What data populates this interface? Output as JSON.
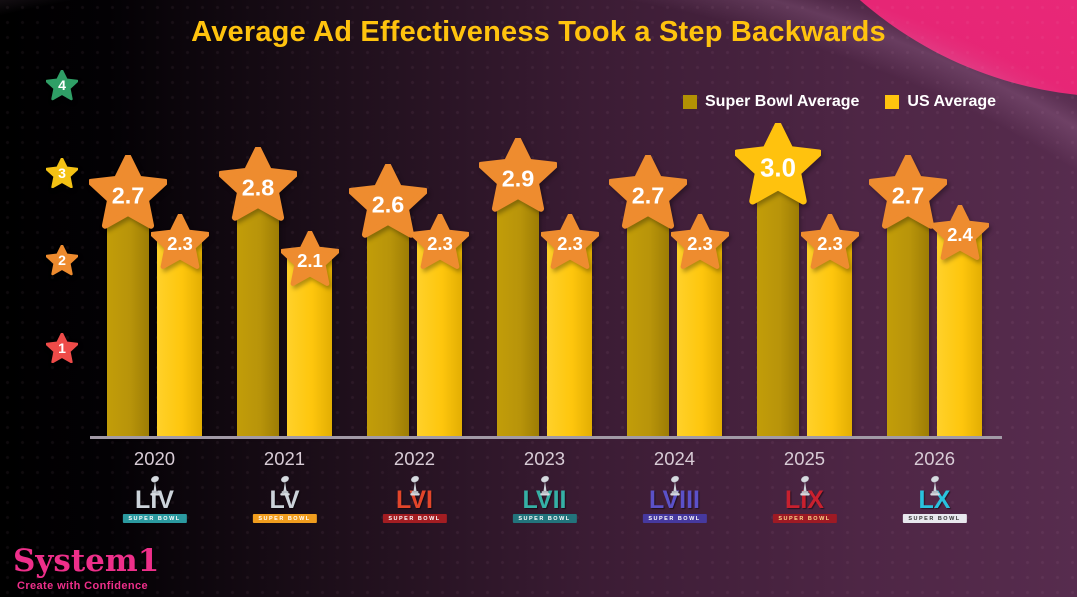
{
  "title": "Average Ad Effectiveness Took a Step Backwards",
  "legend": [
    {
      "label": "Super Bowl Average",
      "color": "#b29104"
    },
    {
      "label": "US Average",
      "color": "#ffc40e"
    }
  ],
  "y_axis": {
    "stars": [
      {
        "value": "4",
        "color": "#2f9f66"
      },
      {
        "value": "3",
        "color": "#f4c214"
      },
      {
        "value": "2",
        "color": "#ee8b2e"
      },
      {
        "value": "1",
        "color": "#ee4b49"
      }
    ]
  },
  "chart_data": {
    "type": "bar",
    "title": "Average Ad Effectiveness Took a Step Backwards",
    "categories": [
      "2020",
      "2021",
      "2022",
      "2023",
      "2024",
      "2025",
      "2026"
    ],
    "series": [
      {
        "name": "Super Bowl Average",
        "color": "#b8940a",
        "values": [
          2.7,
          2.8,
          2.6,
          2.9,
          2.7,
          3.0,
          2.7
        ]
      },
      {
        "name": "US Average",
        "color": "#fec60d",
        "values": [
          2.3,
          2.1,
          2.3,
          2.3,
          2.3,
          2.3,
          2.4
        ]
      }
    ],
    "ylim": [
      0,
      4
    ],
    "y_ticks": [
      1,
      2,
      3,
      4
    ],
    "value_star_color": "#ee8c2f",
    "highlight": {
      "category": "2025",
      "series": "Super Bowl Average",
      "value": 3.0,
      "star_color": "#ffc20e"
    },
    "legend_position": "top-right",
    "grid": false
  },
  "x_axis": {
    "logos": [
      {
        "year": "2020",
        "numeral": "LIV",
        "banner_text": "SUPER BOWL",
        "numeral_color": "#ccd3da",
        "banner_color": "#2b9aa0",
        "banner_text_color": "#ffffff"
      },
      {
        "year": "2021",
        "numeral": "LV",
        "banner_text": "SUPER BOWL",
        "numeral_color": "#ccd3da",
        "banner_color": "#f09d1e",
        "banner_text_color": "#ffffff"
      },
      {
        "year": "2022",
        "numeral": "LVI",
        "banner_text": "SUPER BOWL",
        "numeral_color": "#e2452a",
        "banner_color": "#a31d22",
        "banner_text_color": "#ffffff"
      },
      {
        "year": "2023",
        "numeral": "LVII",
        "banner_text": "SUPER BOWL",
        "numeral_color": "#35b0a5",
        "banner_color": "#22747c",
        "banner_text_color": "#ffffff"
      },
      {
        "year": "2024",
        "numeral": "LVIII",
        "banner_text": "SUPER BOWL",
        "numeral_color": "#5b51c8",
        "banner_color": "#46399f",
        "banner_text_color": "#ffffff"
      },
      {
        "year": "2025",
        "numeral": "LIX",
        "banner_text": "SUPER BOWL",
        "numeral_color": "#c8202e",
        "banner_color": "#9e1a24",
        "banner_text_color": "#ffd98a"
      },
      {
        "year": "2026",
        "numeral": "LX",
        "banner_text": "SUPER BOWL",
        "numeral_color": "#29c2de",
        "banner_color": "#e8e8ee",
        "banner_text_color": "#333333"
      }
    ]
  },
  "footer": {
    "brand": "System1",
    "tagline": "Create with Confidence"
  },
  "colors": {
    "background_purple": "#532b47",
    "background_black": "#000000",
    "pink_blob": "#ec2a7c",
    "title_gold": "#ffc30e",
    "axis_line": "#a29aa6",
    "value_text": "#ffffff"
  }
}
